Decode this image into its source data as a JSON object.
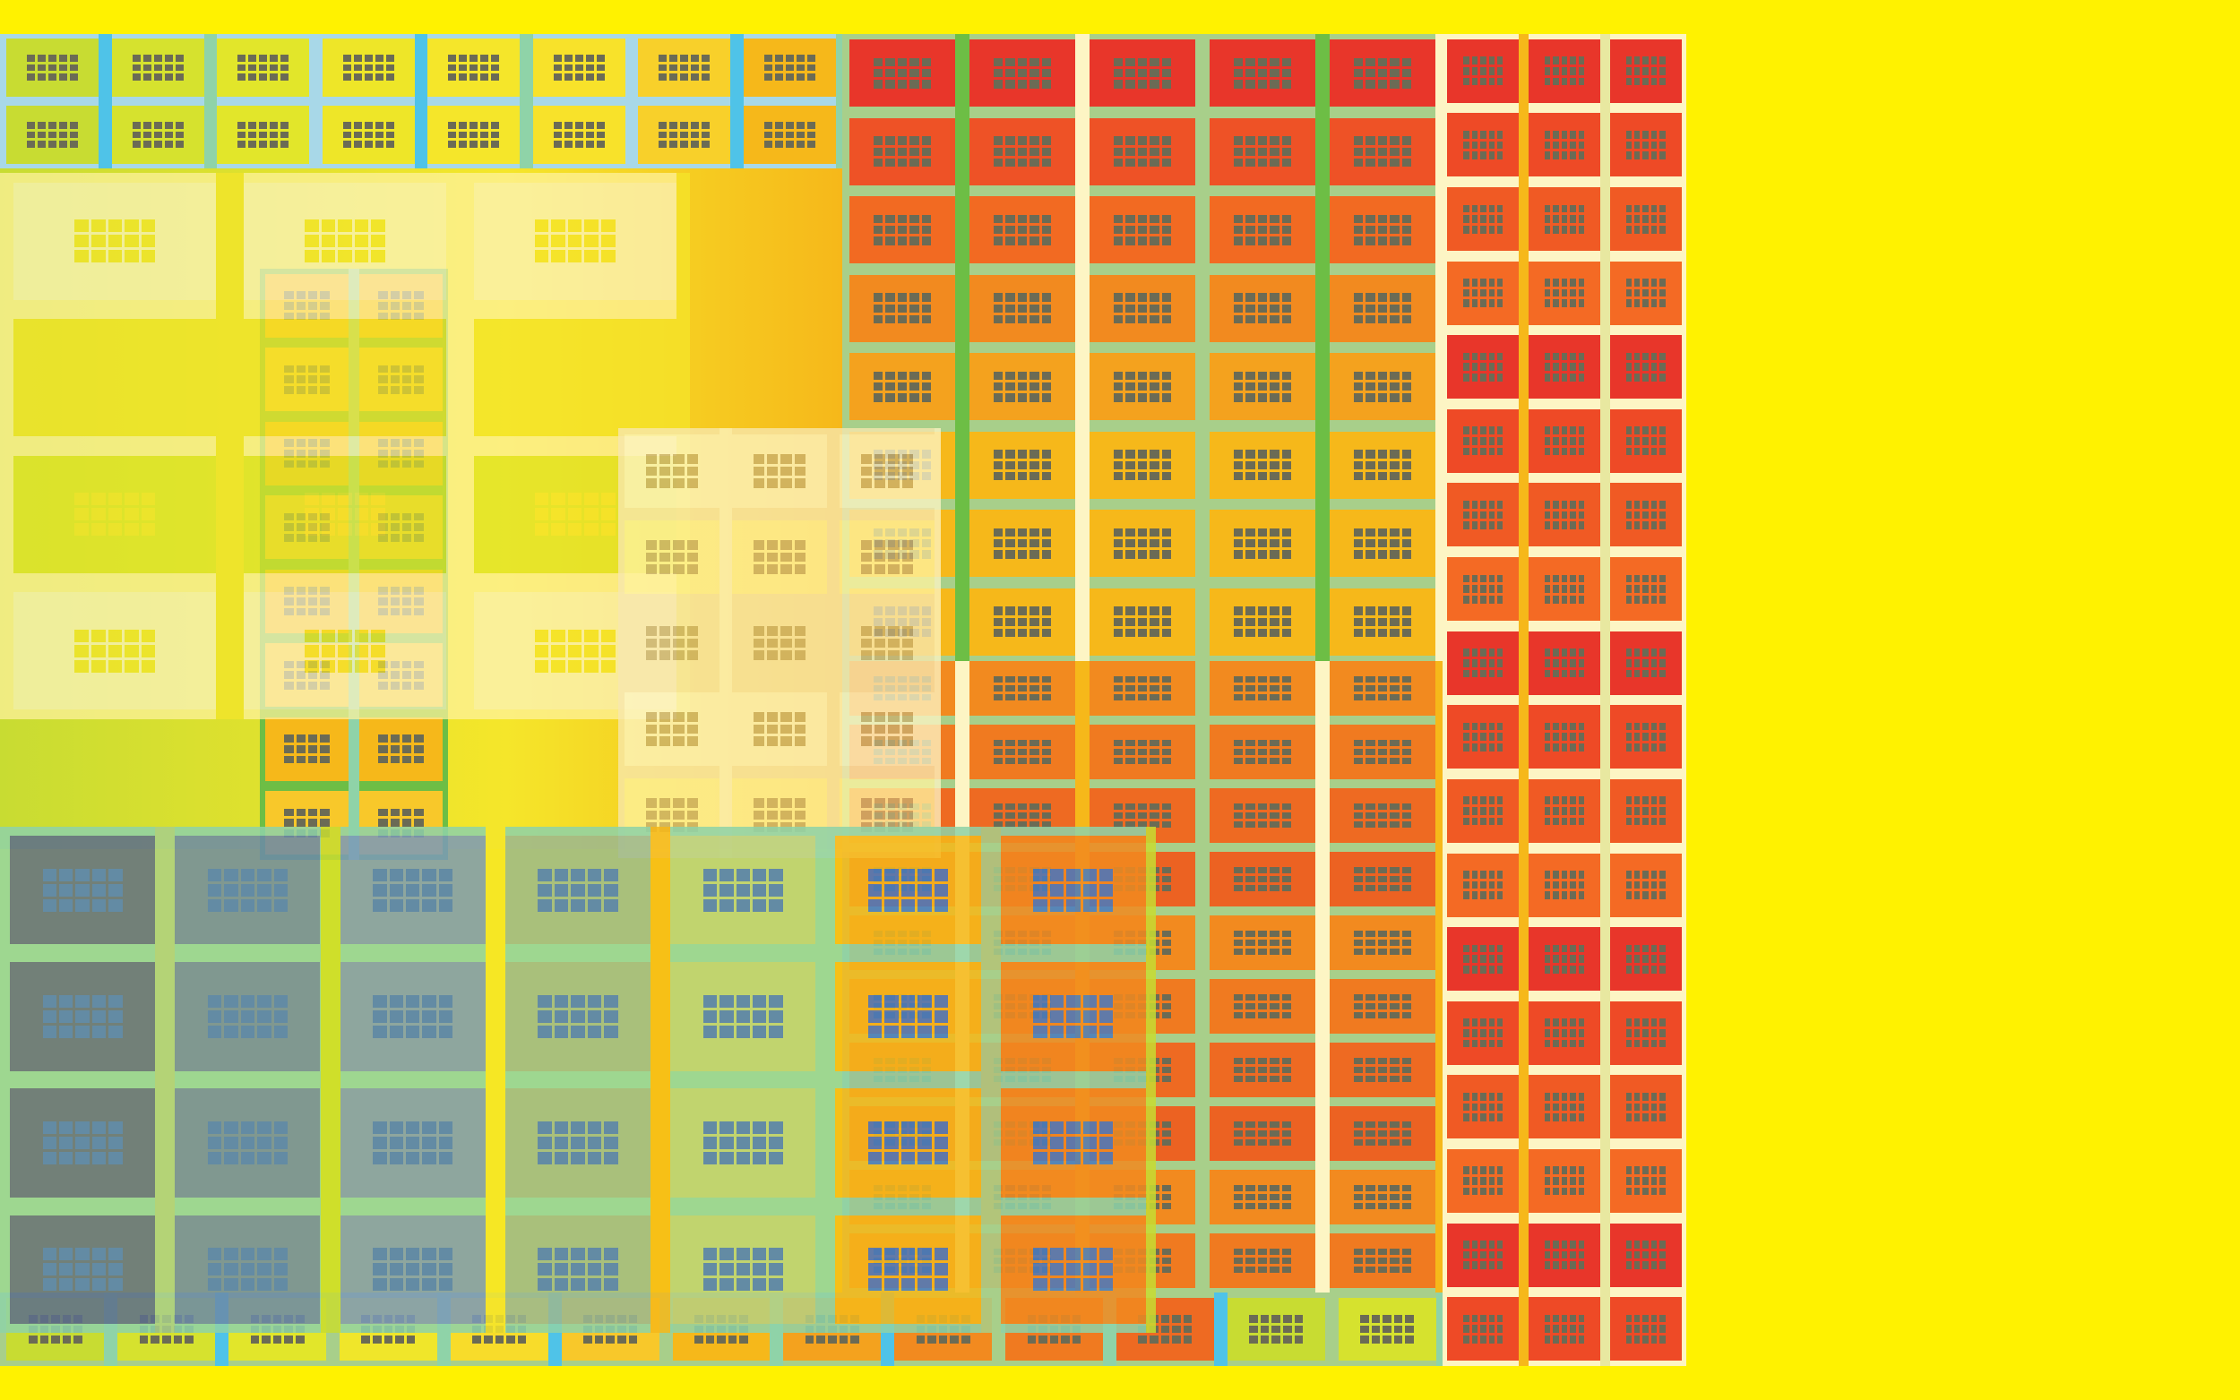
{
  "palette": {
    "background": "#FFF200",
    "lime": "#C8DC32",
    "yellow": "#F5E62A",
    "sky": "#4FC3E8",
    "mint": "#8FD3A8",
    "grass": "#6DBE45",
    "amber": "#F6B81A",
    "orange": "#F2851F",
    "deep_orange": "#EE6A22",
    "red": "#E8362A",
    "cream": "#FFF3A0",
    "pale_cream": "#FDF5C4",
    "sage": "#A8CF8A",
    "slate": "#5C6E8C",
    "blue": "#4A7BBF",
    "teal": "#2DB3C7",
    "dot": "#6B6B55"
  },
  "layers": [
    {
      "name": "base-top-left-grid",
      "cols": 8,
      "rows": 2,
      "cell_colors": [
        "#C8DC32",
        "#D6E22E",
        "#E2E62A",
        "#EEE628",
        "#F5E62A",
        "#F8E22A",
        "#F8D02A",
        "#F6B81A"
      ],
      "gap_colors": [
        "#A8D8E8",
        "#4FC3E8",
        "#8FD3A8"
      ],
      "dot_color": "#6B6B55",
      "dot_cols": 5,
      "dot_rows": 3,
      "opacity": 1
    },
    {
      "name": "base-right-column-grid",
      "cols": 3,
      "rows": 18,
      "cell_colors": [
        "#E8362A",
        "#EE4A26",
        "#F05A24",
        "#F46A24"
      ],
      "gap_colors": [
        "#FDF5C4",
        "#F6B81A",
        "#E8E8A0"
      ],
      "dot_color": "#6B6B55",
      "dot_cols": 5,
      "dot_rows": 3,
      "opacity": 1
    },
    {
      "name": "base-bottom-strip",
      "cols": 13,
      "rows": 1,
      "cell_colors": [
        "#C8DC32",
        "#D6E22E",
        "#E2E62A",
        "#F0E62A",
        "#F8DC2A",
        "#F8C82A",
        "#F6B81A",
        "#F4A21E",
        "#F28A1F",
        "#F07A20",
        "#EE6A22"
      ],
      "gap_colors": [
        "#A8CF8A",
        "#8FD3A8",
        "#4FC3E8"
      ],
      "dot_color": "#6B6B55",
      "dot_cols": 5,
      "dot_rows": 3,
      "opacity": 1
    },
    {
      "name": "base-lower-right-grid",
      "cols": 5,
      "rows": 10,
      "cell_colors": [
        "#F28A1F",
        "#F07A20",
        "#EE6A22",
        "#EC6222"
      ],
      "gap_colors": [
        "#A8CF8A",
        "#FDF5C4",
        "#F6B81A"
      ],
      "dot_color": "#6B6B55",
      "dot_cols": 5,
      "dot_rows": 3,
      "opacity": 1
    },
    {
      "name": "overlay-orange-red-panel",
      "cols": 5,
      "rows": 8,
      "cell_colors": [
        "#E8362A",
        "#EE5226",
        "#F26A22",
        "#F28A1F",
        "#F4A21E",
        "#F6B81A",
        "#F6B81A",
        "#F6B81A"
      ],
      "gap_colors": [
        "#A8CF8A",
        "#6DBE45",
        "#FDF5C4"
      ],
      "dot_color": "#6B6B55",
      "dot_cols": 5,
      "dot_rows": 3,
      "opacity": 1
    },
    {
      "name": "overlay-lime-tower",
      "cols": 2,
      "rows": 8,
      "cell_colors": [
        "#F6B81A",
        "#F8C82A"
      ],
      "gap_colors": [
        "#6DBE45",
        "#8FD3A8"
      ],
      "dot_color": "#6B6B55",
      "dot_cols": 4,
      "dot_rows": 3,
      "opacity": 1
    },
    {
      "name": "overlay-pale-left-panel",
      "cols": 3,
      "rows": 4,
      "cell_colors": [
        "#FDF5C4",
        "#F5E62A",
        "#E2E62A"
      ],
      "gap_colors": [
        "#FFF3A0",
        "#F5E62A"
      ],
      "dot_color": "#F5E62A",
      "dot_cols": 5,
      "dot_rows": 3,
      "opacity": 0.72
    },
    {
      "name": "overlay-pale-center-panel",
      "cols": 3,
      "rows": 5,
      "cell_colors": [
        "#FDF5C4",
        "#FFF3A0",
        "#F8E8B0"
      ],
      "gap_colors": [
        "#F8E8B0",
        "#FDF5C4"
      ],
      "dot_color": "#C8B070",
      "dot_cols": 4,
      "dot_rows": 3,
      "opacity": 0.78
    },
    {
      "name": "overlay-bottom-gradient-panel",
      "cols": 7,
      "rows": 4,
      "cell_colors": [
        "#5C6E8C",
        "#6C8AA8",
        "#7C9AB8",
        "#9CB890",
        "#B8D080",
        "#F6B81A",
        "#F28A1F"
      ],
      "gap_colors": [
        "#8FD3A8",
        "#A8CF8A",
        "#C8DC32",
        "#F5E62A",
        "#F6B81A"
      ],
      "dot_color": "#4A7BBF",
      "dot_cols": 5,
      "dot_rows": 3,
      "opacity": 0.86
    }
  ]
}
